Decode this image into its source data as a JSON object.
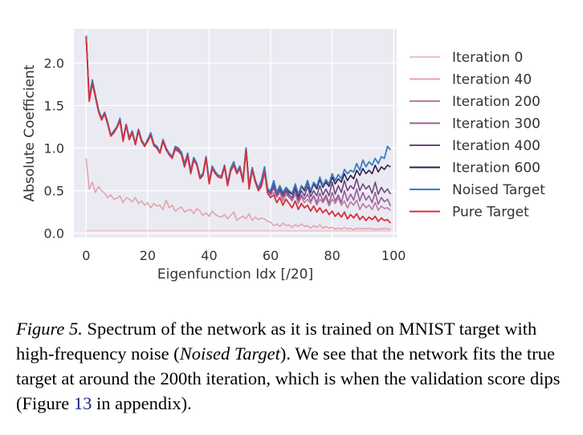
{
  "chart_data": {
    "type": "line",
    "title": "",
    "xlabel": "Eigenfunction Idx [/20]",
    "ylabel": "Absolute Coefficient",
    "xlim": [
      -4,
      101
    ],
    "ylim": [
      -0.05,
      2.4
    ],
    "xticks": [
      0,
      20,
      40,
      60,
      80,
      100
    ],
    "yticks": [
      0.0,
      0.5,
      1.0,
      1.5,
      2.0
    ],
    "xtick_labels": [
      "0",
      "20",
      "40",
      "60",
      "80",
      "100"
    ],
    "ytick_labels": [
      "0.0",
      "0.5",
      "1.0",
      "1.5",
      "2.0"
    ],
    "grid": true,
    "legend_position": "right",
    "x": [
      0,
      1,
      2,
      3,
      4,
      5,
      6,
      7,
      8,
      9,
      10,
      11,
      12,
      13,
      14,
      15,
      16,
      17,
      18,
      19,
      20,
      21,
      22,
      23,
      24,
      25,
      26,
      27,
      28,
      29,
      30,
      31,
      32,
      33,
      34,
      35,
      36,
      37,
      38,
      39,
      40,
      41,
      42,
      43,
      44,
      45,
      46,
      47,
      48,
      49,
      50,
      51,
      52,
      53,
      54,
      55,
      56,
      57,
      58,
      59,
      60,
      61,
      62,
      63,
      64,
      65,
      66,
      67,
      68,
      69,
      70,
      71,
      72,
      73,
      74,
      75,
      76,
      77,
      78,
      79,
      80,
      81,
      82,
      83,
      84,
      85,
      86,
      87,
      88,
      89,
      90,
      91,
      92,
      93,
      94,
      95,
      96,
      97,
      98,
      99
    ],
    "series": [
      {
        "name": "Iteration 0",
        "color": "#efc4c4",
        "width": 1.6,
        "values": [
          0.03,
          0.03,
          0.03,
          0.03,
          0.03,
          0.03,
          0.03,
          0.03,
          0.03,
          0.03,
          0.03,
          0.03,
          0.03,
          0.03,
          0.03,
          0.03,
          0.03,
          0.03,
          0.03,
          0.03,
          0.03,
          0.03,
          0.03,
          0.03,
          0.03,
          0.03,
          0.03,
          0.03,
          0.03,
          0.03,
          0.03,
          0.03,
          0.03,
          0.03,
          0.03,
          0.03,
          0.03,
          0.03,
          0.03,
          0.03,
          0.03,
          0.03,
          0.03,
          0.03,
          0.03,
          0.03,
          0.03,
          0.03,
          0.03,
          0.03,
          0.03,
          0.03,
          0.03,
          0.03,
          0.03,
          0.03,
          0.03,
          0.03,
          0.03,
          0.03,
          0.03,
          0.03,
          0.03,
          0.03,
          0.03,
          0.03,
          0.03,
          0.03,
          0.03,
          0.03,
          0.03,
          0.03,
          0.03,
          0.03,
          0.03,
          0.03,
          0.03,
          0.03,
          0.03,
          0.03,
          0.03,
          0.03,
          0.03,
          0.03,
          0.03,
          0.03,
          0.03,
          0.03,
          0.03,
          0.03,
          0.03,
          0.03,
          0.03,
          0.03,
          0.03,
          0.03,
          0.03,
          0.03,
          0.03,
          0.03
        ]
      },
      {
        "name": "Iteration 40",
        "color": "#e3a3ae",
        "width": 1.6,
        "values": [
          0.88,
          0.52,
          0.6,
          0.48,
          0.55,
          0.5,
          0.47,
          0.42,
          0.45,
          0.4,
          0.41,
          0.44,
          0.36,
          0.42,
          0.4,
          0.37,
          0.42,
          0.35,
          0.38,
          0.33,
          0.36,
          0.3,
          0.35,
          0.32,
          0.33,
          0.28,
          0.39,
          0.3,
          0.33,
          0.26,
          0.29,
          0.31,
          0.25,
          0.27,
          0.28,
          0.23,
          0.29,
          0.26,
          0.21,
          0.24,
          0.2,
          0.26,
          0.22,
          0.2,
          0.19,
          0.22,
          0.17,
          0.21,
          0.25,
          0.15,
          0.18,
          0.2,
          0.17,
          0.23,
          0.15,
          0.19,
          0.16,
          0.18,
          0.17,
          0.14,
          0.13,
          0.09,
          0.11,
          0.08,
          0.12,
          0.09,
          0.1,
          0.07,
          0.1,
          0.08,
          0.11,
          0.08,
          0.09,
          0.06,
          0.09,
          0.07,
          0.1,
          0.06,
          0.08,
          0.06,
          0.07,
          0.05,
          0.06,
          0.05,
          0.07,
          0.05,
          0.06,
          0.04,
          0.06,
          0.05,
          0.06,
          0.05,
          0.06,
          0.05,
          0.05,
          0.05,
          0.05,
          0.06,
          0.05,
          0.05
        ]
      },
      {
        "name": "Iteration 200",
        "color": "#bc7aa2",
        "width": 1.6,
        "values": [
          2.32,
          1.58,
          1.76,
          1.62,
          1.45,
          1.34,
          1.42,
          1.3,
          1.16,
          1.2,
          1.25,
          1.32,
          1.1,
          1.28,
          1.12,
          1.18,
          1.05,
          1.22,
          1.1,
          1.03,
          1.1,
          1.15,
          1.05,
          1.02,
          0.95,
          1.1,
          1.0,
          0.93,
          0.9,
          0.98,
          0.96,
          0.93,
          0.78,
          0.92,
          0.72,
          0.88,
          0.82,
          0.65,
          0.7,
          0.9,
          0.6,
          0.78,
          0.72,
          0.68,
          0.67,
          0.8,
          0.58,
          0.75,
          0.82,
          0.72,
          0.78,
          0.62,
          1.0,
          0.55,
          0.77,
          0.62,
          0.52,
          0.58,
          0.75,
          0.5,
          0.45,
          0.48,
          0.42,
          0.48,
          0.38,
          0.45,
          0.43,
          0.38,
          0.46,
          0.35,
          0.43,
          0.36,
          0.4,
          0.35,
          0.44,
          0.33,
          0.4,
          0.36,
          0.42,
          0.32,
          0.4,
          0.35,
          0.42,
          0.33,
          0.38,
          0.3,
          0.37,
          0.33,
          0.39,
          0.28,
          0.35,
          0.3,
          0.33,
          0.28,
          0.36,
          0.27,
          0.32,
          0.29,
          0.3,
          0.27
        ]
      },
      {
        "name": "Iteration 300",
        "color": "#9a5e97",
        "width": 1.6,
        "values": [
          2.32,
          1.58,
          1.78,
          1.62,
          1.45,
          1.34,
          1.42,
          1.3,
          1.15,
          1.2,
          1.25,
          1.33,
          1.1,
          1.28,
          1.12,
          1.19,
          1.05,
          1.22,
          1.1,
          1.03,
          1.1,
          1.16,
          1.05,
          1.02,
          0.95,
          1.1,
          1.0,
          0.93,
          0.9,
          0.98,
          0.96,
          0.93,
          0.78,
          0.92,
          0.72,
          0.88,
          0.82,
          0.65,
          0.7,
          0.9,
          0.6,
          0.78,
          0.72,
          0.68,
          0.67,
          0.8,
          0.58,
          0.75,
          0.82,
          0.72,
          0.78,
          0.62,
          1.0,
          0.55,
          0.77,
          0.62,
          0.52,
          0.58,
          0.75,
          0.5,
          0.46,
          0.53,
          0.44,
          0.5,
          0.42,
          0.48,
          0.42,
          0.4,
          0.5,
          0.38,
          0.45,
          0.4,
          0.46,
          0.38,
          0.44,
          0.36,
          0.47,
          0.38,
          0.45,
          0.35,
          0.48,
          0.38,
          0.45,
          0.36,
          0.5,
          0.38,
          0.46,
          0.39,
          0.52,
          0.38,
          0.48,
          0.39,
          0.44,
          0.36,
          0.48,
          0.34,
          0.42,
          0.37,
          0.4,
          0.32
        ]
      },
      {
        "name": "Iteration 400",
        "color": "#6e4580",
        "width": 1.6,
        "values": [
          2.32,
          1.58,
          1.8,
          1.62,
          1.45,
          1.34,
          1.42,
          1.3,
          1.15,
          1.2,
          1.25,
          1.34,
          1.1,
          1.28,
          1.12,
          1.2,
          1.05,
          1.22,
          1.1,
          1.03,
          1.1,
          1.17,
          1.05,
          1.02,
          0.95,
          1.1,
          1.0,
          0.93,
          0.9,
          1.0,
          0.98,
          0.94,
          0.8,
          0.93,
          0.72,
          0.88,
          0.82,
          0.66,
          0.7,
          0.9,
          0.6,
          0.78,
          0.72,
          0.68,
          0.67,
          0.8,
          0.58,
          0.75,
          0.83,
          0.72,
          0.78,
          0.62,
          1.0,
          0.55,
          0.77,
          0.62,
          0.52,
          0.6,
          0.76,
          0.5,
          0.48,
          0.56,
          0.46,
          0.52,
          0.44,
          0.5,
          0.45,
          0.42,
          0.52,
          0.4,
          0.5,
          0.44,
          0.55,
          0.43,
          0.5,
          0.44,
          0.56,
          0.45,
          0.52,
          0.44,
          0.6,
          0.46,
          0.56,
          0.48,
          0.62,
          0.5,
          0.56,
          0.52,
          0.64,
          0.5,
          0.58,
          0.52,
          0.56,
          0.47,
          0.6,
          0.46,
          0.54,
          0.48,
          0.52,
          0.46
        ]
      },
      {
        "name": "Iteration 600",
        "color": "#2f1f4a",
        "width": 1.6,
        "values": [
          2.32,
          1.58,
          1.8,
          1.62,
          1.45,
          1.35,
          1.42,
          1.3,
          1.15,
          1.2,
          1.25,
          1.35,
          1.1,
          1.28,
          1.12,
          1.2,
          1.05,
          1.22,
          1.1,
          1.03,
          1.1,
          1.18,
          1.05,
          1.02,
          0.95,
          1.1,
          1.0,
          0.94,
          0.9,
          1.02,
          1.0,
          0.95,
          0.82,
          0.94,
          0.73,
          0.89,
          0.82,
          0.67,
          0.7,
          0.9,
          0.6,
          0.79,
          0.72,
          0.68,
          0.67,
          0.8,
          0.58,
          0.76,
          0.84,
          0.72,
          0.79,
          0.62,
          1.0,
          0.55,
          0.77,
          0.62,
          0.53,
          0.62,
          0.78,
          0.52,
          0.5,
          0.6,
          0.48,
          0.55,
          0.47,
          0.53,
          0.48,
          0.46,
          0.56,
          0.44,
          0.55,
          0.5,
          0.6,
          0.48,
          0.58,
          0.52,
          0.63,
          0.54,
          0.6,
          0.55,
          0.66,
          0.58,
          0.64,
          0.6,
          0.7,
          0.62,
          0.68,
          0.64,
          0.74,
          0.68,
          0.76,
          0.7,
          0.74,
          0.7,
          0.8,
          0.72,
          0.78,
          0.75,
          0.8,
          0.78
        ]
      },
      {
        "name": "Noised Target",
        "color": "#3a7dc0",
        "width": 1.8,
        "values": [
          2.32,
          1.58,
          1.8,
          1.62,
          1.45,
          1.35,
          1.42,
          1.3,
          1.15,
          1.2,
          1.25,
          1.35,
          1.1,
          1.28,
          1.12,
          1.2,
          1.05,
          1.22,
          1.1,
          1.03,
          1.1,
          1.18,
          1.05,
          1.02,
          0.95,
          1.1,
          1.0,
          0.94,
          0.9,
          1.02,
          1.0,
          0.95,
          0.82,
          0.94,
          0.73,
          0.89,
          0.82,
          0.67,
          0.7,
          0.9,
          0.6,
          0.79,
          0.72,
          0.68,
          0.67,
          0.8,
          0.58,
          0.76,
          0.84,
          0.72,
          0.79,
          0.62,
          1.0,
          0.55,
          0.77,
          0.62,
          0.53,
          0.62,
          0.78,
          0.52,
          0.5,
          0.62,
          0.48,
          0.56,
          0.48,
          0.54,
          0.5,
          0.47,
          0.58,
          0.46,
          0.56,
          0.52,
          0.62,
          0.5,
          0.6,
          0.55,
          0.66,
          0.56,
          0.63,
          0.58,
          0.7,
          0.62,
          0.69,
          0.64,
          0.75,
          0.7,
          0.74,
          0.72,
          0.82,
          0.74,
          0.86,
          0.78,
          0.84,
          0.8,
          0.88,
          0.82,
          0.9,
          0.88,
          1.02,
          0.98
        ]
      },
      {
        "name": "Pure Target",
        "color": "#d6303a",
        "width": 1.8,
        "values": [
          2.3,
          1.55,
          1.76,
          1.6,
          1.43,
          1.33,
          1.4,
          1.28,
          1.14,
          1.18,
          1.24,
          1.32,
          1.08,
          1.27,
          1.1,
          1.18,
          1.04,
          1.2,
          1.08,
          1.02,
          1.08,
          1.15,
          1.03,
          1.0,
          0.94,
          1.08,
          0.98,
          0.92,
          0.88,
          1.0,
          0.97,
          0.92,
          0.78,
          0.91,
          0.7,
          0.86,
          0.8,
          0.64,
          0.68,
          0.88,
          0.58,
          0.76,
          0.7,
          0.66,
          0.65,
          0.78,
          0.56,
          0.73,
          0.8,
          0.7,
          0.76,
          0.6,
          0.97,
          0.52,
          0.74,
          0.6,
          0.5,
          0.55,
          0.72,
          0.47,
          0.42,
          0.45,
          0.36,
          0.42,
          0.33,
          0.4,
          0.35,
          0.3,
          0.38,
          0.28,
          0.35,
          0.3,
          0.33,
          0.26,
          0.32,
          0.25,
          0.3,
          0.24,
          0.28,
          0.22,
          0.26,
          0.2,
          0.24,
          0.19,
          0.25,
          0.17,
          0.22,
          0.18,
          0.23,
          0.16,
          0.2,
          0.15,
          0.19,
          0.16,
          0.2,
          0.14,
          0.18,
          0.15,
          0.16,
          0.12
        ]
      }
    ]
  },
  "caption": {
    "fig_label": "Figure 5.",
    "text_1": " Spectrum of the network as it is trained on MNIST target with high-frequency noise (",
    "emphasis": "Noised Target",
    "text_2": "). We see that the network fits the true target at around the 200th iteration, which is when the validation score dips (Figure ",
    "ref": "13",
    "text_3": " in appendix)."
  }
}
